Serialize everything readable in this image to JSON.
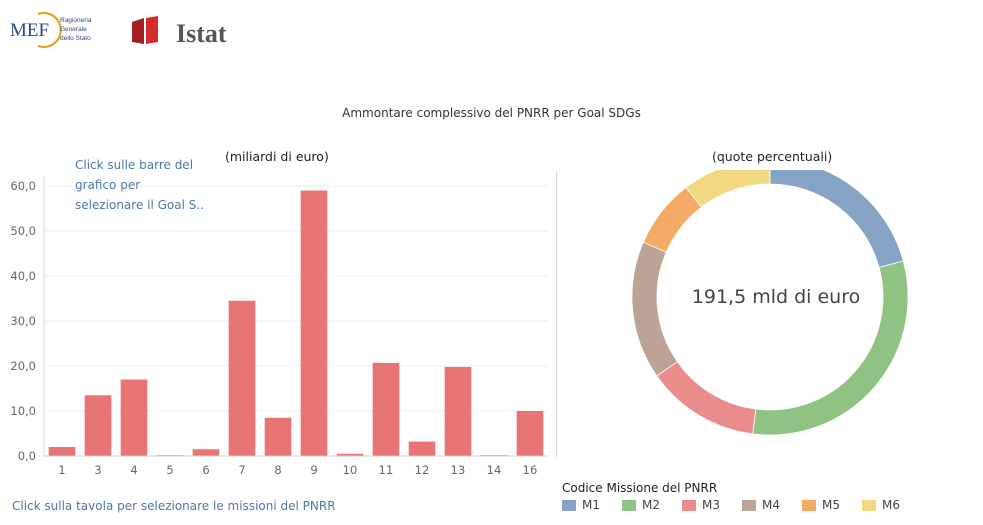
{
  "header": {
    "mef_logo_text": "MEF",
    "mef_logo_subtext": [
      "Ragioneria",
      "Generale",
      "dello Stato"
    ],
    "istat_logo_text": "Istat"
  },
  "main_title": "Ammontare complessivo del PNRR per Goal SDGs",
  "bar_subtitle": "(miliardi di euro)",
  "donut_subtitle": "(quote percentuali)",
  "hint_bars": "Click sulle barre del grafico per selezionare il Goal S..",
  "hint_table": "Click sulla tavola per selezionare le missioni del PNRR",
  "donut_center_text": "191,5 mld di euro",
  "legend": {
    "title": "Codice Missione del PNRR",
    "items": [
      {
        "label": "M1",
        "color": "#86a2c4"
      },
      {
        "label": "M2",
        "color": "#8fc283"
      },
      {
        "label": "M3",
        "color": "#eb8c8c"
      },
      {
        "label": "M4",
        "color": "#bba396"
      },
      {
        "label": "M5",
        "color": "#f2aa66"
      },
      {
        "label": "M6",
        "color": "#f4d983"
      }
    ]
  },
  "chart_data": [
    {
      "type": "bar",
      "categories": [
        "1",
        "3",
        "4",
        "5",
        "6",
        "7",
        "8",
        "9",
        "10",
        "11",
        "12",
        "13",
        "14",
        "16"
      ],
      "values": [
        2.0,
        13.5,
        17.0,
        0.1,
        1.5,
        34.5,
        8.5,
        59.0,
        0.5,
        20.7,
        3.2,
        19.8,
        0.2,
        10.0
      ],
      "ylim": [
        0,
        60
      ],
      "yticks": [
        0,
        10,
        20,
        30,
        40,
        50,
        60
      ],
      "ytick_labels": [
        "0,0",
        "10,0",
        "20,0",
        "30,0",
        "40,0",
        "50,0",
        "60,0"
      ],
      "bar_color": "#e87575",
      "grid": true
    },
    {
      "type": "pie",
      "donut": true,
      "categories": [
        "M1",
        "M2",
        "M3",
        "M4",
        "M5",
        "M6"
      ],
      "values": [
        20.8,
        31.2,
        13.3,
        16.2,
        8.1,
        10.4
      ],
      "colors": [
        "#86a2c4",
        "#8fc283",
        "#eb8c8c",
        "#bba396",
        "#f2aa66",
        "#f4d983"
      ],
      "center_label": "191,5 mld di euro"
    }
  ]
}
